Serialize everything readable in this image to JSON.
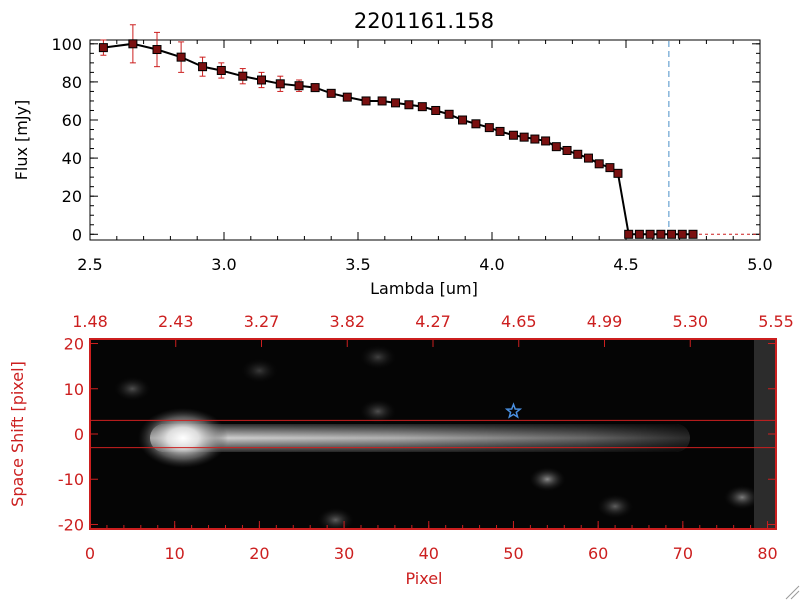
{
  "colors": {
    "axis": "#000000",
    "red": "#cc1f1f",
    "marker_fill": "#7a1010",
    "dashed_line": "#4a90c8",
    "star": "#4a90e2"
  },
  "chart_data": [
    {
      "type": "line",
      "title": "2201161.158",
      "xlabel": "Lambda [um]",
      "ylabel": "Flux [mJy]",
      "xlim": [
        2.5,
        5.0
      ],
      "ylim": [
        -3,
        102
      ],
      "xticks": [
        "2.5",
        "3.0",
        "3.5",
        "4.0",
        "4.5",
        "5.0"
      ],
      "yticks": [
        "0",
        "20",
        "40",
        "60",
        "80",
        "100"
      ],
      "vline_x": 4.66,
      "series": [
        {
          "x": [
            2.55,
            2.66,
            2.75,
            2.84,
            2.92,
            2.99,
            3.07,
            3.14,
            3.21,
            3.28,
            3.34,
            3.4,
            3.46,
            3.53,
            3.59,
            3.64,
            3.69,
            3.74,
            3.79,
            3.84,
            3.89,
            3.94,
            3.99,
            4.03,
            4.08,
            4.12,
            4.16,
            4.2,
            4.24,
            4.28,
            4.32,
            4.36,
            4.4,
            4.44,
            4.47,
            4.51,
            4.55,
            4.59,
            4.63,
            4.67,
            4.71,
            4.75
          ],
          "y": [
            98,
            100,
            97,
            93,
            88,
            86,
            83,
            81,
            79,
            78,
            77,
            74,
            72,
            70,
            70,
            69,
            68,
            67,
            65,
            63,
            60,
            58,
            56,
            54,
            52,
            51,
            50,
            49,
            46,
            44,
            42,
            40,
            37,
            35,
            32,
            0,
            0,
            0,
            0,
            0,
            0,
            0
          ],
          "err": [
            4,
            10,
            9,
            8,
            5,
            4,
            4,
            4,
            4,
            3,
            2,
            1,
            1,
            1,
            1,
            1,
            1,
            1,
            1,
            1,
            1,
            1,
            1,
            1,
            1,
            1,
            1,
            1,
            1,
            1,
            1,
            1,
            1,
            1,
            1,
            0,
            0,
            0,
            0,
            0,
            0,
            0
          ]
        }
      ]
    },
    {
      "type": "heatmap",
      "xlabel": "Pixel",
      "ylabel": "Space Shift [pixel]",
      "xlim": [
        0,
        81
      ],
      "ylim": [
        -21,
        21
      ],
      "xticks": [
        "0",
        "10",
        "20",
        "30",
        "40",
        "50",
        "60",
        "70",
        "80"
      ],
      "yticks": [
        "-20",
        "-10",
        "0",
        "10",
        "20"
      ],
      "top_ticks": [
        "1.48",
        "2.43",
        "3.27",
        "3.82",
        "4.27",
        "4.65",
        "4.99",
        "5.30",
        "5.55"
      ],
      "aperture_lines": [
        3,
        -3
      ],
      "source": {
        "x": 10.5,
        "y": 0
      },
      "star": {
        "x": 50,
        "y": 5
      },
      "blobs": [
        {
          "x": 54,
          "y": -10,
          "level": 0.45
        },
        {
          "x": 77,
          "y": -14,
          "level": 0.4
        },
        {
          "x": 29,
          "y": -19,
          "level": 0.3
        },
        {
          "x": 34,
          "y": 5,
          "level": 0.25
        },
        {
          "x": 34,
          "y": 17,
          "level": 0.2
        },
        {
          "x": 5,
          "y": 10,
          "level": 0.25
        },
        {
          "x": 62,
          "y": -16,
          "level": 0.3
        },
        {
          "x": 20,
          "y": 14,
          "level": 0.18
        }
      ]
    }
  ]
}
